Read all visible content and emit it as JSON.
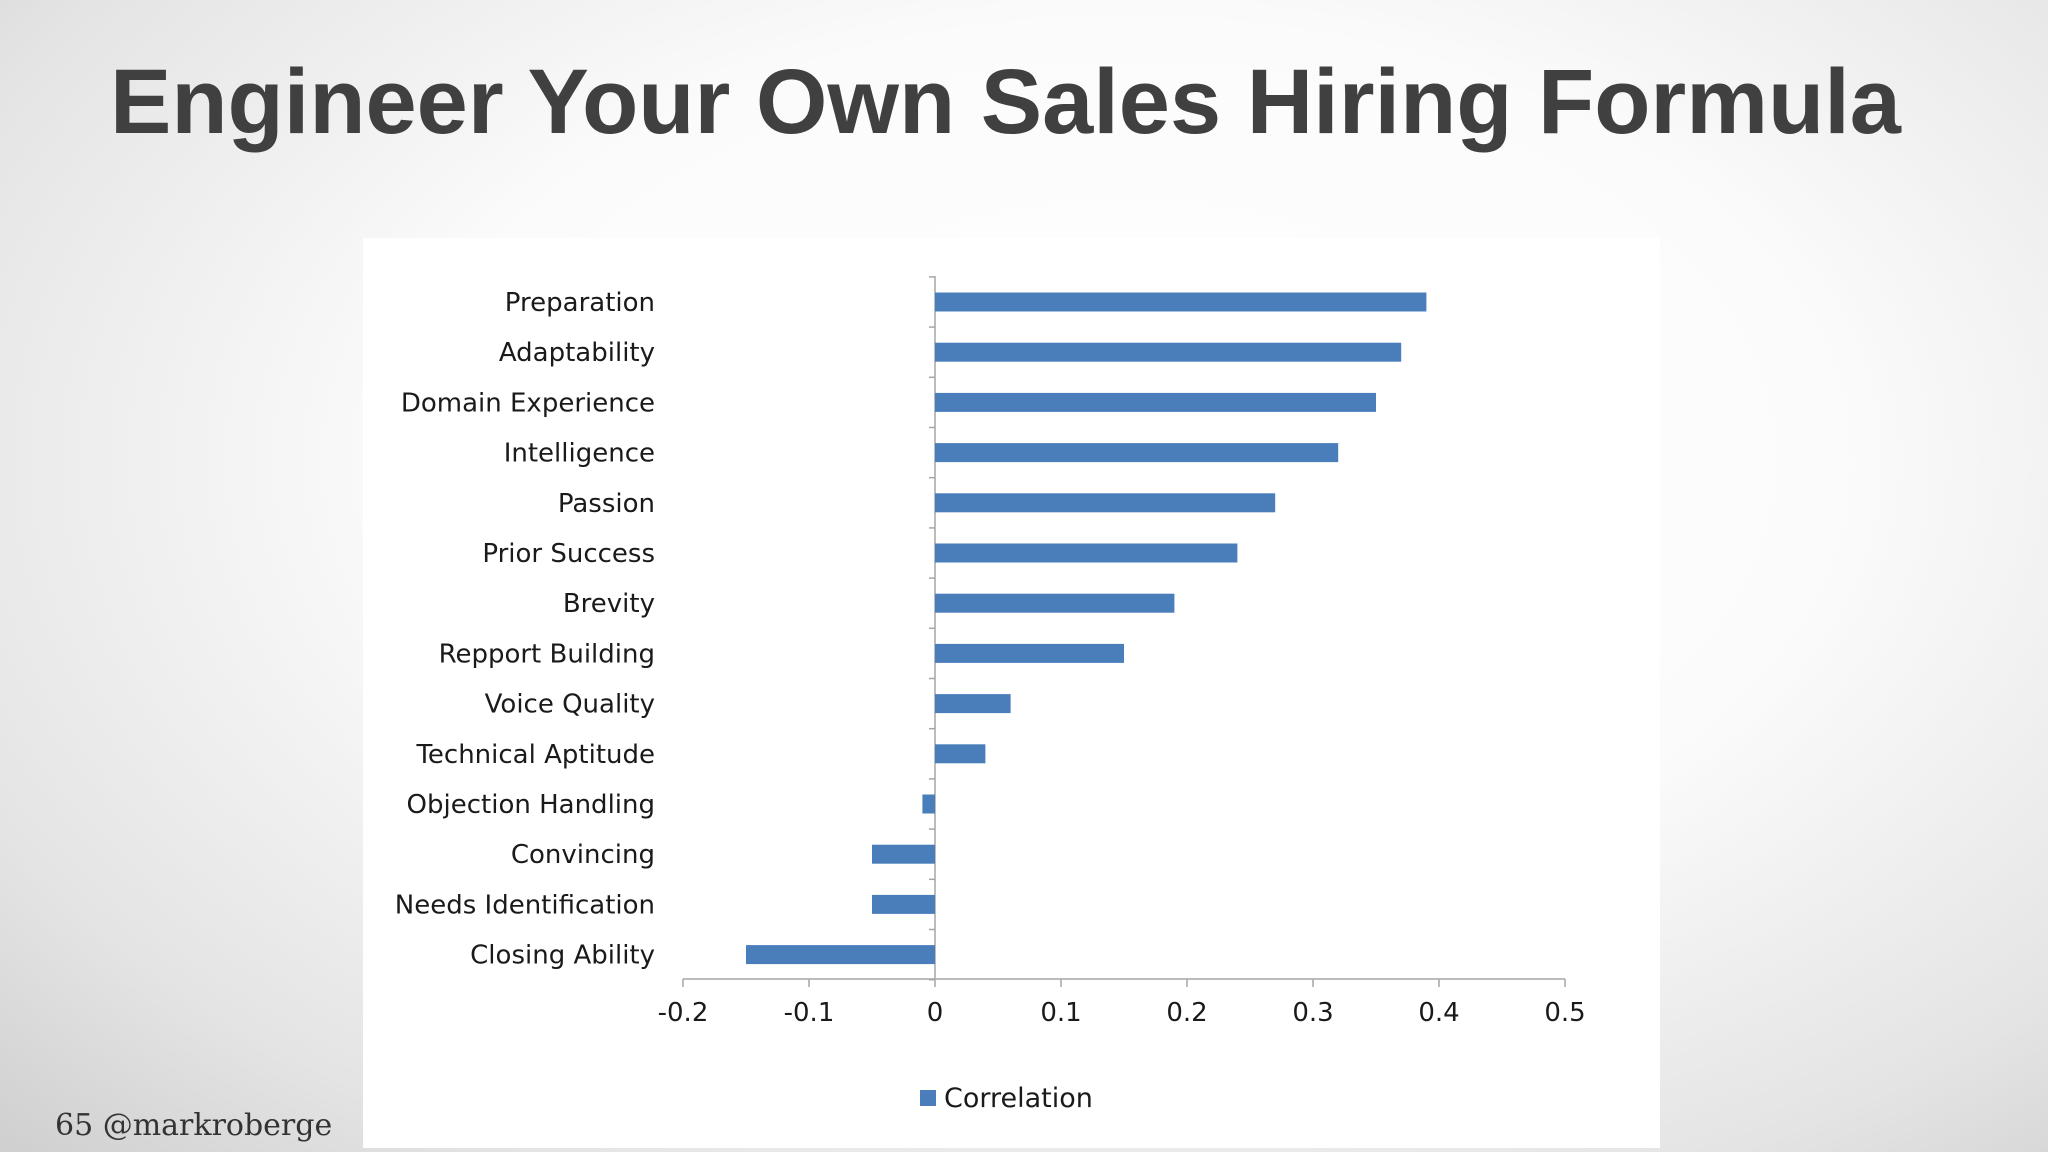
{
  "slide": {
    "title": "Engineer Your Own Sales Hiring Formula",
    "footer": "65 @markroberge"
  },
  "chart_data": {
    "type": "bar",
    "orientation": "horizontal",
    "title": "",
    "xlabel": "",
    "ylabel": "",
    "categories": [
      "Preparation",
      "Adaptability",
      "Domain Experience",
      "Intelligence",
      "Passion",
      "Prior Success",
      "Brevity",
      "Repport Building",
      "Voice Quality",
      "Technical Aptitude",
      "Objection Handling",
      "Convincing",
      "Needs Identification",
      "Closing Ability"
    ],
    "series": [
      {
        "name": "Correlation",
        "values": [
          0.39,
          0.37,
          0.35,
          0.32,
          0.27,
          0.24,
          0.19,
          0.15,
          0.06,
          0.04,
          -0.01,
          -0.05,
          -0.05,
          -0.15
        ]
      }
    ],
    "xlim": [
      -0.2,
      0.5
    ],
    "xticks": [
      "-0.2",
      "-0.1",
      "0",
      "0.1",
      "0.2",
      "0.3",
      "0.4",
      "0.5"
    ],
    "legend_position": "bottom",
    "grid": false,
    "colors": {
      "bar": "#4a7ebb",
      "axis": "#a6a6a6"
    }
  }
}
